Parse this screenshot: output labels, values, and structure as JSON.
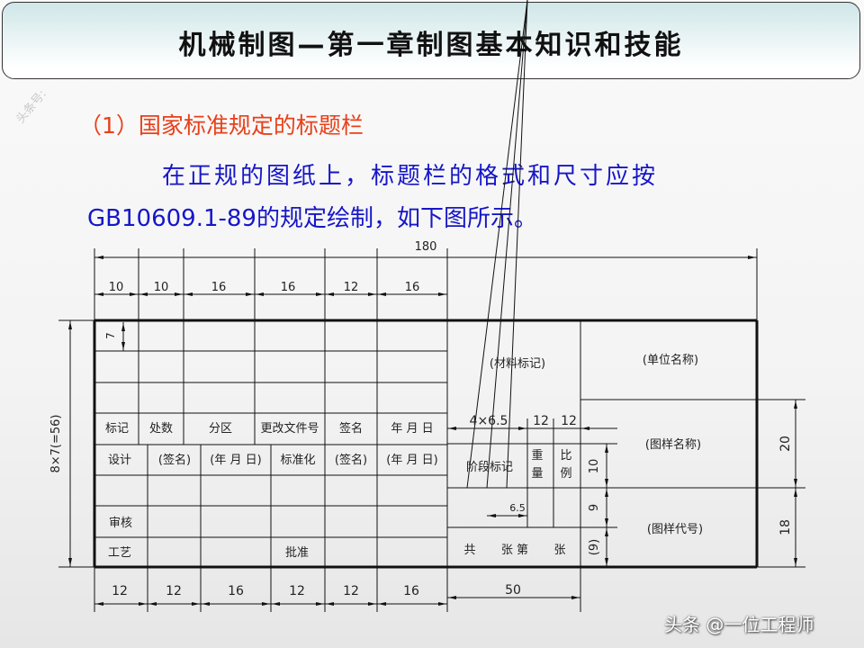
{
  "header": {
    "title": "机械制图—第一章制图基本知识和技能"
  },
  "watermark": "头条号:",
  "subheading": "（1）国家标准规定的标题栏",
  "paragraph": {
    "line1": "在正规的图纸上，标题栏的格式和尺寸应按",
    "line2": "GB10609.1-89的规定绘制，如下图所示。"
  },
  "drawing": {
    "overall_dim": "180",
    "top_dims": [
      "10",
      "10",
      "16",
      "16",
      "12",
      "16"
    ],
    "bottom_dims": [
      "12",
      "12",
      "16",
      "12",
      "12",
      "16",
      "50"
    ],
    "left_dim": "8×7(=56)",
    "row_dim": "7",
    "rev_headers": [
      "标记",
      "处数",
      "分区",
      "更改文件号",
      "签名",
      "年  月  日"
    ],
    "sign_headers": [
      "设计",
      "(签名)",
      "(年  月  日)",
      "标准化",
      "(签名)",
      "(年  月  日)"
    ],
    "review": "审核",
    "process": "工艺",
    "approve": "批准",
    "material": "(材料标记)",
    "mid_dims": [
      "4×6.5",
      "12",
      "12"
    ],
    "stage": "阶段标记",
    "weight": "重量",
    "scale": "比例",
    "small_dim": "6.5",
    "sheets": [
      "共",
      "张  第",
      "张"
    ],
    "right_v_dims": [
      "10",
      "9",
      "(9)"
    ],
    "unit": "(单位名称)",
    "drawing_name": "(图样名称)",
    "drawing_code": "(图样代号)",
    "far_right_dims": [
      "20",
      "18"
    ]
  },
  "footer": "头条 @一位工程师"
}
